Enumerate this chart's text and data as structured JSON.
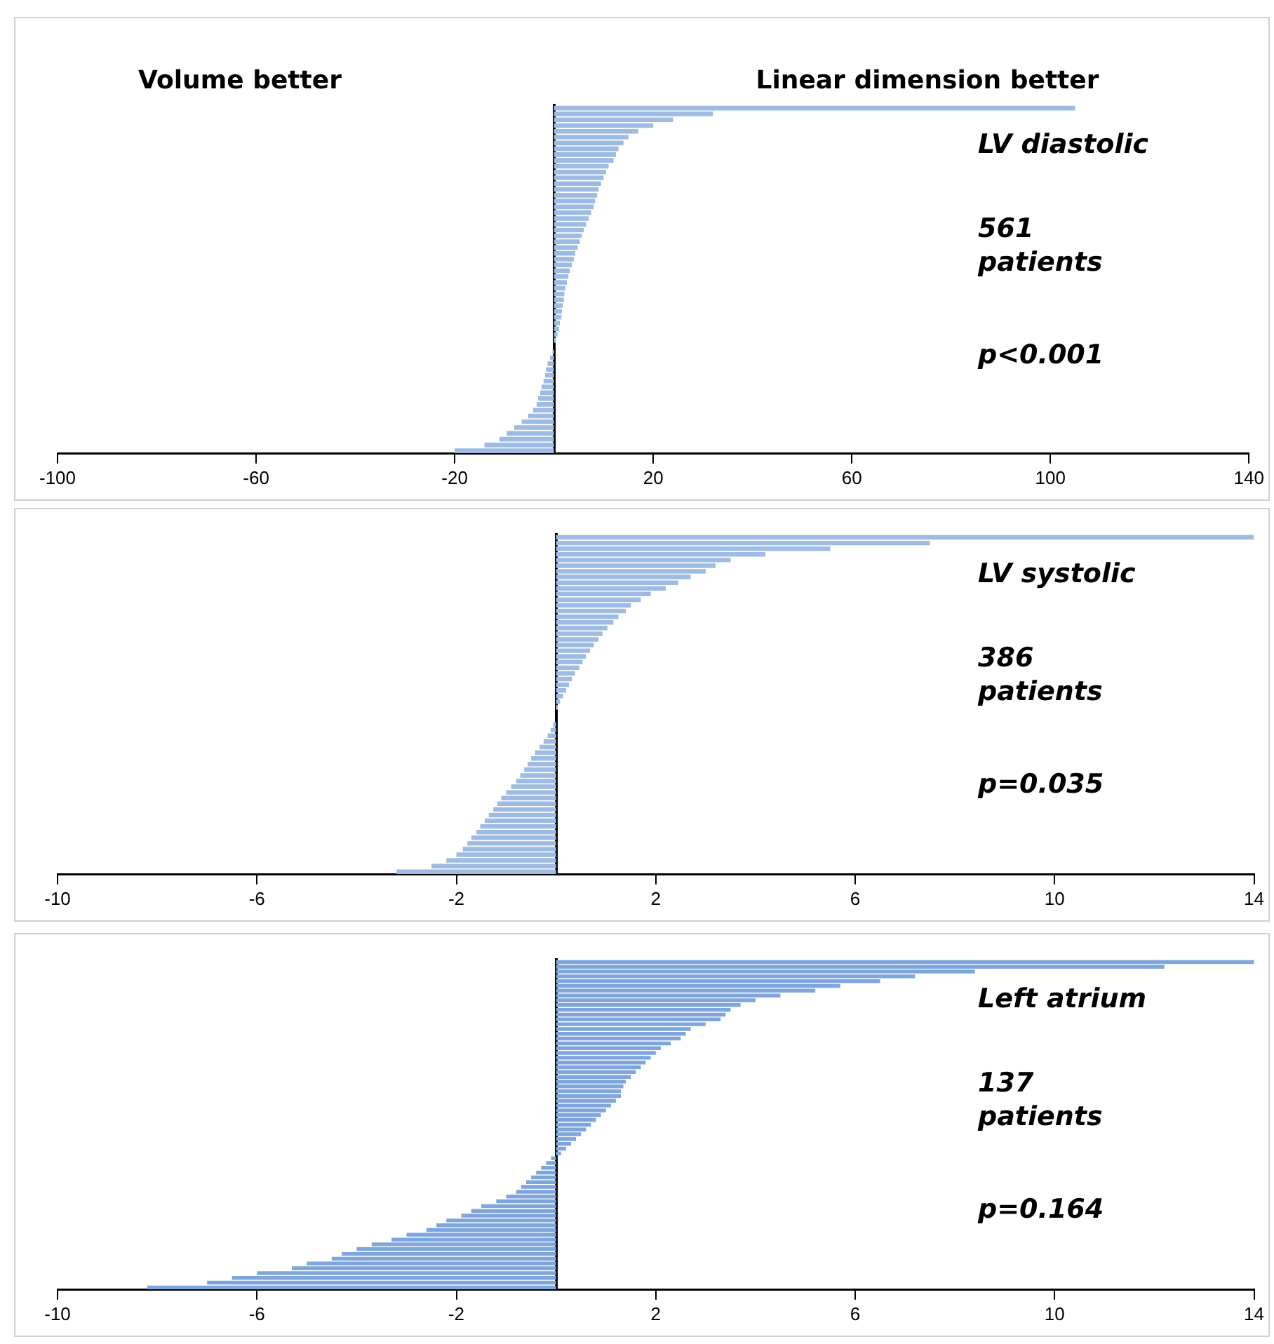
{
  "chart_data": [
    {
      "type": "bar",
      "orientation": "horizontal",
      "color": "#9dbbe3",
      "xlim": [
        -100,
        140
      ],
      "xticks": [
        -100,
        -60,
        -20,
        20,
        60,
        100,
        140
      ],
      "grid": false,
      "tick_labels": "x",
      "annotations": [
        "Volume better",
        "Linear dimension better",
        "LV diastolic",
        "561\npatients",
        "p<0.001"
      ],
      "categories": [
        null,
        null,
        null,
        null,
        null,
        null,
        null,
        null,
        null,
        null,
        null,
        null,
        null,
        null,
        null,
        null,
        null,
        null,
        null,
        null,
        null,
        null,
        null,
        null,
        null,
        null,
        null,
        null,
        null,
        null,
        null,
        null,
        null,
        null,
        null,
        null,
        null,
        null,
        null,
        null,
        null,
        null,
        null,
        null,
        null,
        null,
        null,
        null,
        null,
        null,
        null,
        null,
        null,
        null,
        null,
        null,
        null,
        null,
        null,
        null
      ],
      "values": [
        105,
        32,
        24,
        20,
        17,
        15,
        14,
        13,
        12.5,
        12,
        11,
        10.5,
        10,
        9.5,
        9,
        8.7,
        8.3,
        8,
        7.5,
        7,
        6.5,
        6,
        5.6,
        5.2,
        4.8,
        4.3,
        4,
        3.6,
        3.2,
        2.9,
        2.6,
        2.3,
        2.1,
        2,
        1.8,
        1.6,
        1.5,
        1.2,
        1,
        0.7,
        0.4,
        null,
        -0.3,
        -0.8,
        -1.3,
        -1.6,
        -1.8,
        -2.1,
        -2.5,
        -2.8,
        -3.2,
        -3.5,
        -4.2,
        -5.2,
        -6.5,
        -8,
        -9.5,
        -11,
        -14,
        -20
      ]
    },
    {
      "type": "bar",
      "orientation": "horizontal",
      "color": "#9dbbe3",
      "xlim": [
        -10,
        14
      ],
      "xticks": [
        -10,
        -6,
        -2,
        2,
        6,
        10,
        14
      ],
      "grid": false,
      "tick_labels": "x",
      "annotations": [
        "LV systolic",
        "386\npatients",
        "p=0.035"
      ],
      "categories": [
        null,
        null,
        null,
        null,
        null,
        null,
        null,
        null,
        null,
        null,
        null,
        null,
        null,
        null,
        null,
        null,
        null,
        null,
        null,
        null,
        null,
        null,
        null,
        null,
        null,
        null,
        null,
        null,
        null,
        null,
        null,
        null,
        null,
        null,
        null,
        null,
        null,
        null,
        null,
        null,
        null,
        null,
        null,
        null,
        null,
        null,
        null,
        null,
        null,
        null,
        null,
        null,
        null,
        null,
        null,
        null,
        null,
        null,
        null,
        null
      ],
      "values": [
        14,
        7.5,
        5.5,
        4.2,
        3.5,
        3.2,
        3,
        2.7,
        2.45,
        2.2,
        1.9,
        1.7,
        1.5,
        1.4,
        1.25,
        1.15,
        1.03,
        0.93,
        0.85,
        0.76,
        0.68,
        0.6,
        0.53,
        0.47,
        0.38,
        0.32,
        0.26,
        0.2,
        0.14,
        0.08,
        0.04,
        null,
        null,
        -0.06,
        -0.11,
        -0.17,
        -0.25,
        -0.33,
        -0.42,
        -0.5,
        -0.57,
        -0.64,
        -0.72,
        -0.8,
        -0.9,
        -1,
        -1.1,
        -1.18,
        -1.26,
        -1.35,
        -1.43,
        -1.52,
        -1.6,
        -1.7,
        -1.78,
        -1.87,
        -2,
        -2.2,
        -2.5,
        -3.2
      ]
    },
    {
      "type": "bar",
      "orientation": "horizontal",
      "color": "#7fa6dc",
      "xlim": [
        -10,
        14
      ],
      "xticks": [
        -10,
        -6,
        -2,
        2,
        6,
        10,
        14
      ],
      "grid": false,
      "tick_labels": "x",
      "annotations": [
        "Left atrium",
        "137\npatients",
        "p=0.164"
      ],
      "categories": [
        null,
        null,
        null,
        null,
        null,
        null,
        null,
        null,
        null,
        null,
        null,
        null,
        null,
        null,
        null,
        null,
        null,
        null,
        null,
        null,
        null,
        null,
        null,
        null,
        null,
        null,
        null,
        null,
        null,
        null,
        null,
        null,
        null,
        null,
        null,
        null,
        null,
        null,
        null,
        null,
        null,
        null,
        null,
        null,
        null,
        null,
        null,
        null,
        null,
        null,
        null,
        null,
        null,
        null,
        null,
        null,
        null,
        null,
        null,
        null,
        null,
        null,
        null,
        null,
        null,
        null,
        null,
        null,
        null
      ],
      "values": [
        14,
        12.2,
        8.4,
        7.2,
        6.5,
        5.7,
        5.2,
        4.5,
        4,
        3.7,
        3.5,
        3.4,
        3.3,
        3,
        2.7,
        2.6,
        2.5,
        2.3,
        2.1,
        2,
        1.9,
        1.8,
        1.7,
        1.6,
        1.5,
        1.4,
        1.35,
        1.3,
        1.3,
        1.2,
        1.1,
        1,
        0.9,
        0.8,
        0.7,
        0.6,
        0.5,
        0.4,
        0.3,
        0.2,
        0.1,
        -0.1,
        -0.2,
        -0.3,
        -0.4,
        -0.5,
        -0.6,
        -0.7,
        -0.8,
        -1,
        -1.2,
        -1.5,
        -1.7,
        -1.9,
        -2.2,
        -2.4,
        -2.6,
        -3,
        -3.3,
        -3.7,
        -4,
        -4.3,
        -4.5,
        -5,
        -5.3,
        -6,
        -6.5,
        -7,
        -8.2
      ]
    }
  ]
}
